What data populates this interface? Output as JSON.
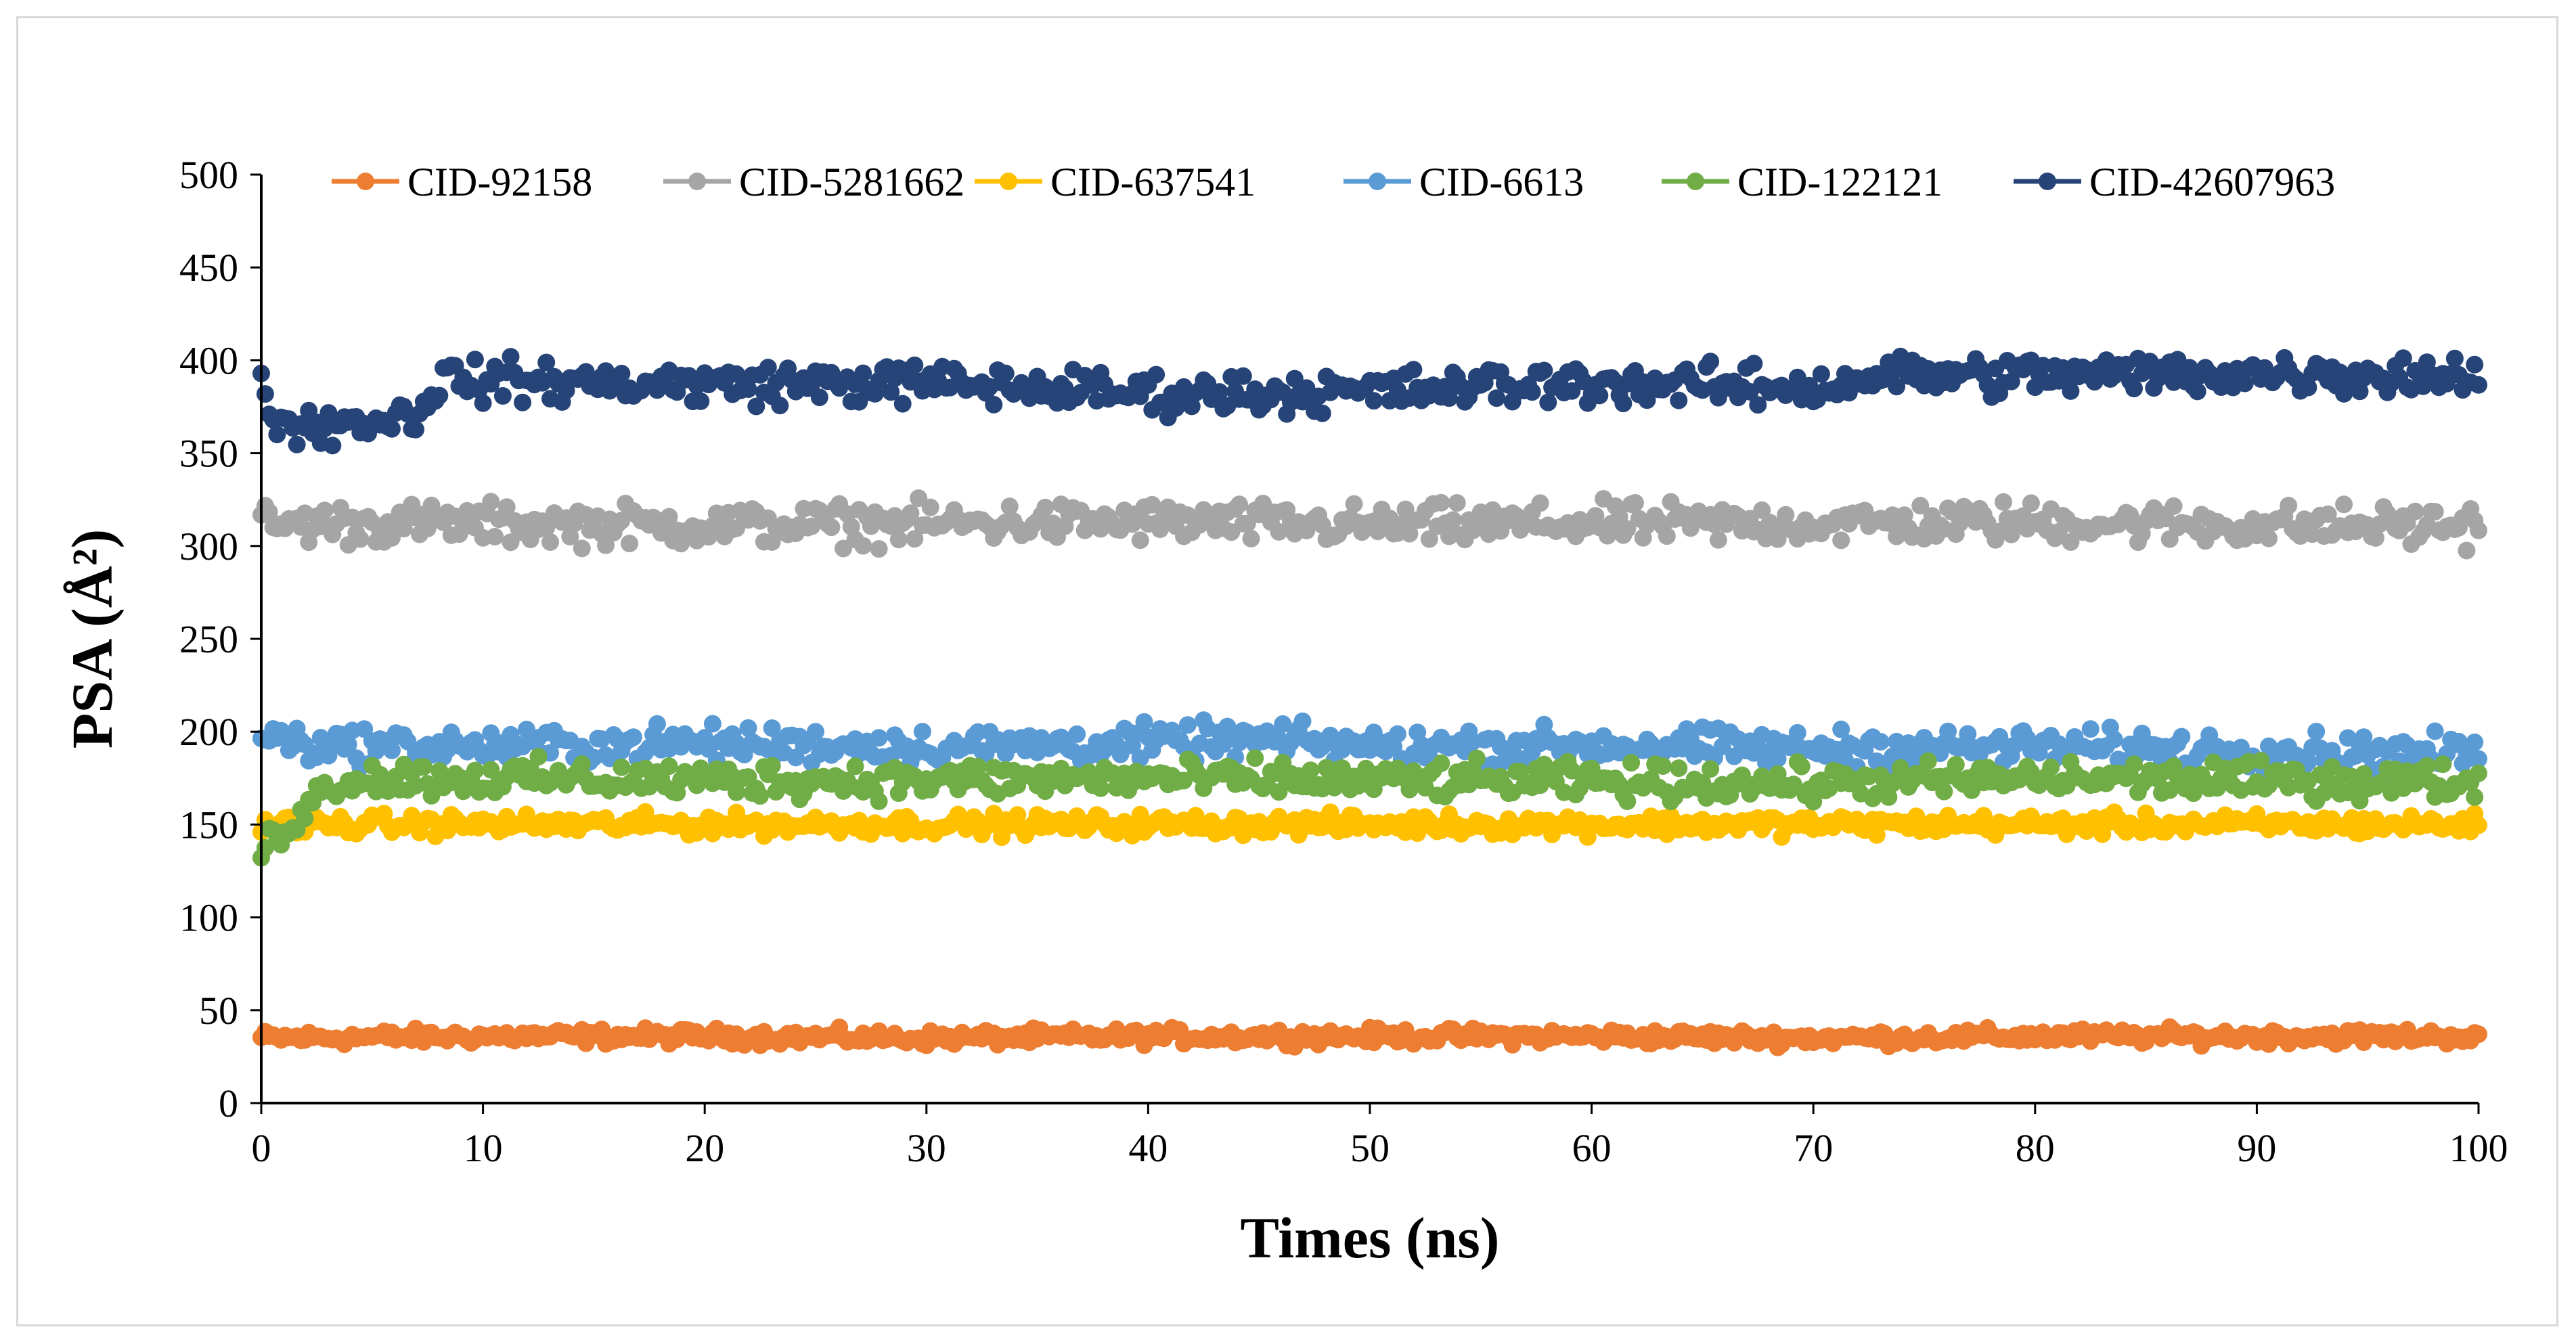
{
  "chart_data": {
    "type": "scatter",
    "title": "",
    "xlabel": "Times (ns)",
    "ylabel": "PSA (Å²)",
    "xlim": [
      0,
      100
    ],
    "ylim": [
      0,
      500
    ],
    "xticks": [
      "0",
      "10",
      "20",
      "30",
      "40",
      "50",
      "60",
      "70",
      "80",
      "90",
      "100"
    ],
    "yticks": [
      "0",
      "50",
      "100",
      "150",
      "200",
      "250",
      "300",
      "350",
      "400",
      "450",
      "500"
    ],
    "grid": false,
    "legend_position": "top",
    "series": [
      {
        "name": "CID-92158",
        "color": "#ed7d31",
        "x": [
          0,
          10,
          20,
          30,
          40,
          50,
          60,
          70,
          80,
          90,
          100
        ],
        "y": [
          35,
          36,
          36,
          35,
          36,
          36,
          36,
          35,
          36,
          36,
          36
        ],
        "noise": 3
      },
      {
        "name": "CID-5281662",
        "color": "#a5a5a5",
        "x": [
          0,
          10,
          20,
          30,
          40,
          50,
          60,
          70,
          80,
          90,
          100
        ],
        "y": [
          312,
          312,
          311,
          312,
          313,
          311,
          312,
          312,
          313,
          311,
          311
        ],
        "noise": 8
      },
      {
        "name": "CID-637541",
        "color": "#ffc000",
        "x": [
          0,
          10,
          20,
          30,
          40,
          50,
          60,
          70,
          80,
          90,
          100
        ],
        "y": [
          150,
          150,
          150,
          150,
          150,
          150,
          150,
          150,
          150,
          150,
          150
        ],
        "noise": 4
      },
      {
        "name": "CID-6613",
        "color": "#5b9bd5",
        "x": [
          0,
          2,
          10,
          20,
          30,
          40,
          45,
          50,
          60,
          70,
          80,
          90,
          100
        ],
        "y": [
          200,
          193,
          192,
          194,
          192,
          194,
          196,
          192,
          193,
          191,
          192,
          190,
          188
        ],
        "noise": 7
      },
      {
        "name": "CID-122121",
        "color": "#70ad47",
        "x": [
          0,
          1,
          2,
          3,
          4,
          10,
          20,
          30,
          40,
          50,
          60,
          70,
          80,
          90,
          100
        ],
        "y": [
          135,
          148,
          160,
          170,
          175,
          175,
          174,
          174,
          175,
          174,
          173,
          172,
          175,
          174,
          173
        ],
        "noise": 7
      },
      {
        "name": "CID-42607963",
        "color": "#264478",
        "x": [
          0,
          1,
          3,
          5,
          7,
          8,
          10,
          20,
          30,
          40,
          50,
          60,
          70,
          73,
          80,
          90,
          100
        ],
        "y": [
          385,
          365,
          365,
          368,
          370,
          390,
          389,
          387,
          388,
          382,
          383,
          388,
          385,
          392,
          392,
          393,
          392
        ],
        "noise": 8
      }
    ]
  }
}
